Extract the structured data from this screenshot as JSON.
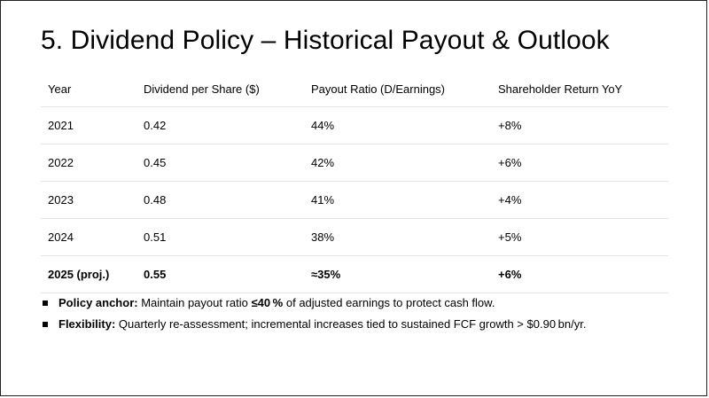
{
  "title": "5. Dividend Policy – Historical Payout & Outlook",
  "table": {
    "headers": [
      "Year",
      "Dividend per Share ($)",
      "Payout Ratio (D/Earnings)",
      "Shareholder Return YoY"
    ],
    "rows": [
      [
        "2021",
        "0.42",
        "44%",
        "+8%"
      ],
      [
        "2022",
        "0.45",
        "42%",
        "+6%"
      ],
      [
        "2023",
        "0.48",
        "41%",
        "+4%"
      ],
      [
        "2024",
        "0.51",
        "38%",
        "+5%"
      ],
      [
        "2025 (proj.)",
        "0.55",
        "≈35%",
        "+6%"
      ]
    ]
  },
  "bullets": [
    {
      "label": "Policy anchor:",
      "pre": " Maintain payout ratio ",
      "emph": "≤40 %",
      "post": " of adjusted earnings to protect cash flow."
    },
    {
      "label": "Flexibility:",
      "text": " Quarterly re-assessment; incremental increases tied to sustained FCF growth > $0.90 bn/yr."
    }
  ]
}
